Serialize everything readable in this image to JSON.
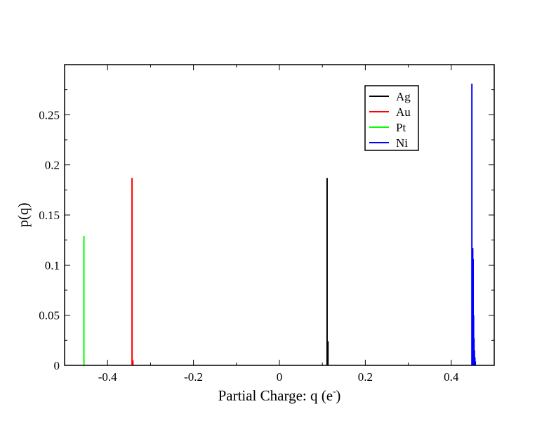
{
  "chart_data": {
    "type": "bar",
    "title": "",
    "xlabel": "Partial Charge: q (e",
    "xlabel_sup": "-",
    "xlabel_suffix": ")",
    "ylabel": "p(q)",
    "xlim": [
      -0.5,
      0.5
    ],
    "ylim": [
      0,
      0.3
    ],
    "x_ticks": [
      -0.4,
      -0.2,
      0,
      0.2,
      0.4
    ],
    "x_tick_labels": [
      "-0.4",
      "-0.2",
      "0",
      "0.2",
      "0.4"
    ],
    "y_ticks": [
      0,
      0.05,
      0.1,
      0.15,
      0.2,
      0.25
    ],
    "y_tick_labels": [
      "0",
      "0.05",
      "0.1",
      "0.15",
      "0.2",
      "0.25"
    ],
    "grid": false,
    "legend_position": "top-right",
    "series": [
      {
        "name": "Ag",
        "color": "#000000",
        "points": [
          [
            0.111,
            0.187
          ],
          [
            0.113,
            0.024
          ]
        ]
      },
      {
        "name": "Au",
        "color": "#ff0000",
        "points": [
          [
            -0.343,
            0.187
          ],
          [
            -0.341,
            0.005
          ]
        ]
      },
      {
        "name": "Pt",
        "color": "#00ff00",
        "points": [
          [
            -0.455,
            0.129
          ]
        ]
      },
      {
        "name": "Ni",
        "color": "#0000ff",
        "points": [
          [
            0.448,
            0.281
          ],
          [
            0.45,
            0.117
          ],
          [
            0.451,
            0.106
          ],
          [
            0.452,
            0.05
          ],
          [
            0.453,
            0.027
          ],
          [
            0.454,
            0.015
          ],
          [
            0.455,
            0.008
          ],
          [
            0.456,
            0.004
          ]
        ]
      }
    ]
  }
}
